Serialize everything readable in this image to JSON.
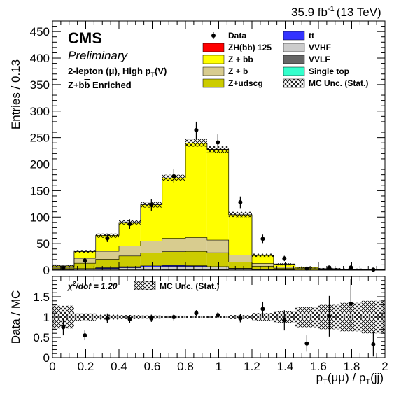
{
  "header": {
    "lumi": "35.9 fb",
    "lumi_exp": "-1",
    "energy": "(13 TeV)"
  },
  "labels": {
    "experiment": "CMS",
    "status": "Preliminary",
    "channel": "2-lepton (μ), High p",
    "channel_sub": "T",
    "channel_end": "(V)",
    "region": "Z+b",
    "region_bar": "b",
    "region_end": " Enriched"
  },
  "ratio_text": {
    "chi2_main": "χ",
    "chi2_sup": "2",
    "chi2_rest": "/dof = 1.20",
    "band_label": "MC Unc. (Stat.)"
  },
  "legend": [
    {
      "label": "Data",
      "kind": "marker",
      "color": "#000000"
    },
    {
      "label": "ZH(bb) 125",
      "kind": "fill",
      "color": "#ff0000"
    },
    {
      "label": "Z + bb",
      "kind": "fill",
      "color": "#ffff00"
    },
    {
      "label": "Z + b",
      "kind": "fill",
      "color": "#d8cc8f"
    },
    {
      "label": "Z+udscg",
      "kind": "fill",
      "color": "#cccc00"
    },
    {
      "label": "tt",
      "kind": "fill",
      "color": "#3333ff"
    },
    {
      "label": "VVHF",
      "kind": "fill",
      "color": "#cccccc"
    },
    {
      "label": "VVLF",
      "kind": "fill",
      "color": "#666666"
    },
    {
      "label": "Single top",
      "kind": "fill",
      "color": "#33ffcc"
    },
    {
      "label": "MC Unc. (Stat.)",
      "kind": "hatch",
      "color": "#000000"
    }
  ],
  "chart_data": [
    {
      "type": "bar",
      "stacked": true,
      "xlabel": "p_T(μμ) / p_T(jj)",
      "ylabel": "Entries / 0.13",
      "xlim": [
        0,
        2
      ],
      "ylim": [
        0,
        470
      ],
      "yticks": [
        0,
        50,
        100,
        150,
        200,
        250,
        300,
        350,
        400,
        450
      ],
      "bin_edges": [
        0,
        0.13,
        0.26,
        0.4,
        0.53,
        0.66,
        0.8,
        0.93,
        1.06,
        1.2,
        1.33,
        1.46,
        1.6,
        1.73,
        1.86,
        2.0
      ],
      "series": [
        {
          "name": "Single top",
          "color": "#33ffcc",
          "values": [
            0,
            0,
            0,
            0,
            0,
            0,
            0,
            0,
            0,
            0,
            0,
            0,
            0,
            0,
            0
          ]
        },
        {
          "name": "VVLF",
          "color": "#666666",
          "values": [
            0.3,
            0.4,
            0.5,
            0.6,
            0.6,
            0.8,
            0.8,
            0.7,
            0.4,
            0.2,
            0.1,
            0,
            0,
            0,
            0
          ]
        },
        {
          "name": "VVHF",
          "color": "#cccccc",
          "values": [
            1,
            1.5,
            2.5,
            4,
            5,
            6,
            6,
            5,
            2.5,
            1,
            0.4,
            0.2,
            0.1,
            0,
            0
          ]
        },
        {
          "name": "tt",
          "color": "#3333ff",
          "values": [
            0.5,
            1,
            1.5,
            2,
            2.5,
            2,
            1.5,
            1,
            0.5,
            0.3,
            0.2,
            0.1,
            0,
            0,
            0
          ]
        },
        {
          "name": "Z+udscg",
          "color": "#cccc00",
          "values": [
            2,
            10,
            16,
            20,
            24,
            26,
            27,
            26,
            12,
            6,
            3,
            1.5,
            1,
            0.6,
            0.3
          ]
        },
        {
          "name": "Z + b",
          "color": "#d8cc8f",
          "values": [
            1.5,
            9.5,
            15,
            19,
            23,
            25,
            26,
            24,
            13,
            5,
            2.5,
            1.5,
            0.8,
            0.5,
            0.2
          ]
        },
        {
          "name": "Z + bb",
          "color": "#ffff00",
          "values": [
            2.7,
            12.5,
            30,
            44,
            68,
            114,
            178,
            171,
            76,
            15,
            5,
            2,
            1,
            0.8,
            0.3
          ]
        },
        {
          "name": "ZH(bb) 125",
          "color": "#ff0000",
          "values": [
            0,
            0,
            0,
            0.2,
            0.2,
            0.3,
            0.3,
            0.3,
            0.2,
            0.1,
            0,
            0,
            0,
            0,
            0
          ]
        }
      ],
      "mc_total": [
        8,
        35,
        65,
        90,
        123,
        174,
        240,
        228,
        105,
        28,
        11,
        5,
        3,
        2,
        0.8
      ],
      "mc_stat_unc": [
        2,
        3,
        4,
        4,
        5,
        6,
        7,
        7,
        5,
        3,
        2,
        1.5,
        1,
        1,
        0.6
      ],
      "data": {
        "name": "Data",
        "x": [
          0.065,
          0.195,
          0.33,
          0.465,
          0.595,
          0.73,
          0.865,
          0.995,
          1.13,
          1.265,
          1.395,
          1.53,
          1.665,
          1.795,
          1.93
        ],
        "y": [
          4,
          18,
          60,
          87,
          123,
          177,
          264,
          241,
          128,
          59,
          22,
          3,
          5,
          5,
          1
        ],
        "yerr": [
          2,
          4,
          7,
          9,
          11,
          13,
          16,
          15,
          11,
          8,
          5,
          2,
          2,
          2,
          1
        ]
      }
    },
    {
      "type": "scatter",
      "xlabel": "p_T(μμ) / p_T(jj)",
      "ylabel": "Data / MC",
      "xlim": [
        0,
        2
      ],
      "ylim": [
        0,
        2
      ],
      "yticks": [
        0,
        0.5,
        1,
        1.5
      ],
      "xticks": [
        0,
        0.2,
        0.4,
        0.6,
        0.8,
        1,
        1.2,
        1.4,
        1.6,
        1.8,
        2
      ],
      "reference_line": 1,
      "band_halfwidth": [
        0.28,
        0.09,
        0.06,
        0.05,
        0.04,
        0.035,
        0.03,
        0.03,
        0.05,
        0.1,
        0.15,
        0.25,
        0.3,
        0.35,
        0.4
      ],
      "points": {
        "x": [
          0.065,
          0.195,
          0.33,
          0.465,
          0.595,
          0.73,
          0.865,
          0.995,
          1.13,
          1.265,
          1.395,
          1.53,
          1.665,
          1.795,
          1.93
        ],
        "y": [
          0.75,
          0.55,
          0.97,
          0.95,
          0.97,
          1.0,
          1.1,
          1.05,
          0.97,
          1.2,
          0.92,
          0.35,
          1.02,
          1.33,
          0.33
        ],
        "yerr": [
          0.2,
          0.12,
          0.12,
          0.1,
          0.09,
          0.08,
          0.07,
          0.07,
          0.1,
          0.18,
          0.25,
          0.2,
          0.5,
          0.6,
          0.3
        ]
      }
    }
  ]
}
